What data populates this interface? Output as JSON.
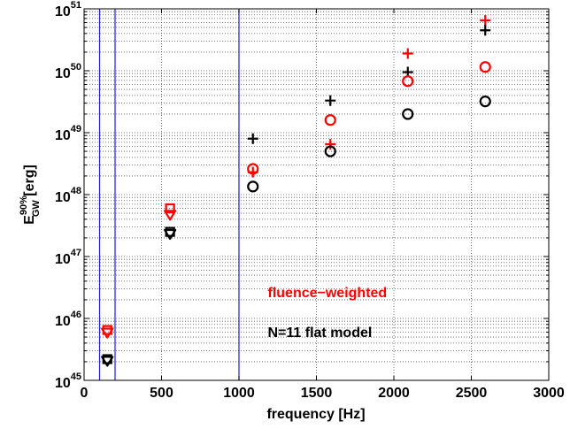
{
  "chart_data": {
    "type": "scatter",
    "title": "",
    "xlabel": "frequency [Hz]",
    "ylabel": {
      "base": "E",
      "sup": "90%",
      "sub": "GW",
      "unit": " [erg]"
    },
    "xlim": [
      0,
      3000
    ],
    "ylim_log10": [
      45,
      51
    ],
    "yscale": "log",
    "grid": true,
    "x_ticks": [
      0,
      500,
      1000,
      1500,
      2000,
      2500,
      3000
    ],
    "x_tick_labels": [
      "0",
      "500",
      "1000",
      "1500",
      "2000",
      "2500",
      "3000"
    ],
    "y_tick_base": "10",
    "y_tick_exponents": [
      "45",
      "46",
      "47",
      "48",
      "49",
      "50",
      "51"
    ],
    "vertical_lines": [
      100,
      200,
      1000
    ],
    "colors": {
      "red": "#ff0000",
      "black": "#000000",
      "blue": "#2020d0",
      "grid": "#555555"
    },
    "series": [
      {
        "marker": "plus",
        "color": "#ff0000",
        "x": [
          1090,
          1590,
          2090,
          2590
        ],
        "y": [
          2.3e+48,
          6.5e+48,
          1.9e+50,
          6.5e+50
        ]
      },
      {
        "marker": "plus",
        "color": "#000000",
        "x": [
          1090,
          1590,
          2090,
          2590
        ],
        "y": [
          8e+48,
          3.3e+49,
          9.5e+49,
          4.5e+50
        ]
      },
      {
        "marker": "circle",
        "color": "#ff0000",
        "x": [
          1090,
          1590,
          2090,
          2590
        ],
        "y": [
          2.6e+48,
          1.6e+49,
          6.8e+49,
          1.15e+50
        ]
      },
      {
        "marker": "circle",
        "color": "#000000",
        "x": [
          1090,
          1590,
          2090,
          2590
        ],
        "y": [
          1.35e+48,
          5e+48,
          2e+49,
          3.2e+49
        ]
      },
      {
        "marker": "square",
        "color": "#ff0000",
        "x": [
          150,
          555
        ],
        "y": [
          6.5e+45,
          6e+47
        ]
      },
      {
        "marker": "triangle-down",
        "color": "#ff0000",
        "x": [
          150,
          555
        ],
        "y": [
          6e+45,
          4.8e+47
        ]
      },
      {
        "marker": "square",
        "color": "#000000",
        "x": [
          150,
          555
        ],
        "y": [
          2.2e+45,
          2.5e+47
        ]
      },
      {
        "marker": "triangle-down",
        "color": "#000000",
        "x": [
          150,
          555
        ],
        "y": [
          2.1e+45,
          2.35e+47
        ]
      }
    ],
    "annotations": [
      {
        "text": "fluence−weighted",
        "color": "#ff0000",
        "x": 1500,
        "y": 2.2e+46
      },
      {
        "text": "N=11 flat model",
        "color": "#000000",
        "x": 1500,
        "y": 5e+45
      }
    ]
  }
}
